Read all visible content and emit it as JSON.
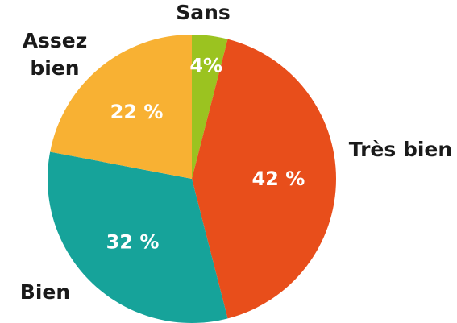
{
  "chart_data": {
    "type": "pie",
    "start": "top",
    "direction": "clockwise",
    "categories": [
      "Sans",
      "Très bien",
      "Bien",
      "Assez bien"
    ],
    "values": [
      4,
      42,
      32,
      22
    ],
    "data_labels": [
      "4%",
      "42 %",
      "32 %",
      "22 %"
    ],
    "colors": [
      "#9bc320",
      "#e84e1b",
      "#16a39a",
      "#f8b133"
    ],
    "title": "",
    "legend": "none"
  }
}
